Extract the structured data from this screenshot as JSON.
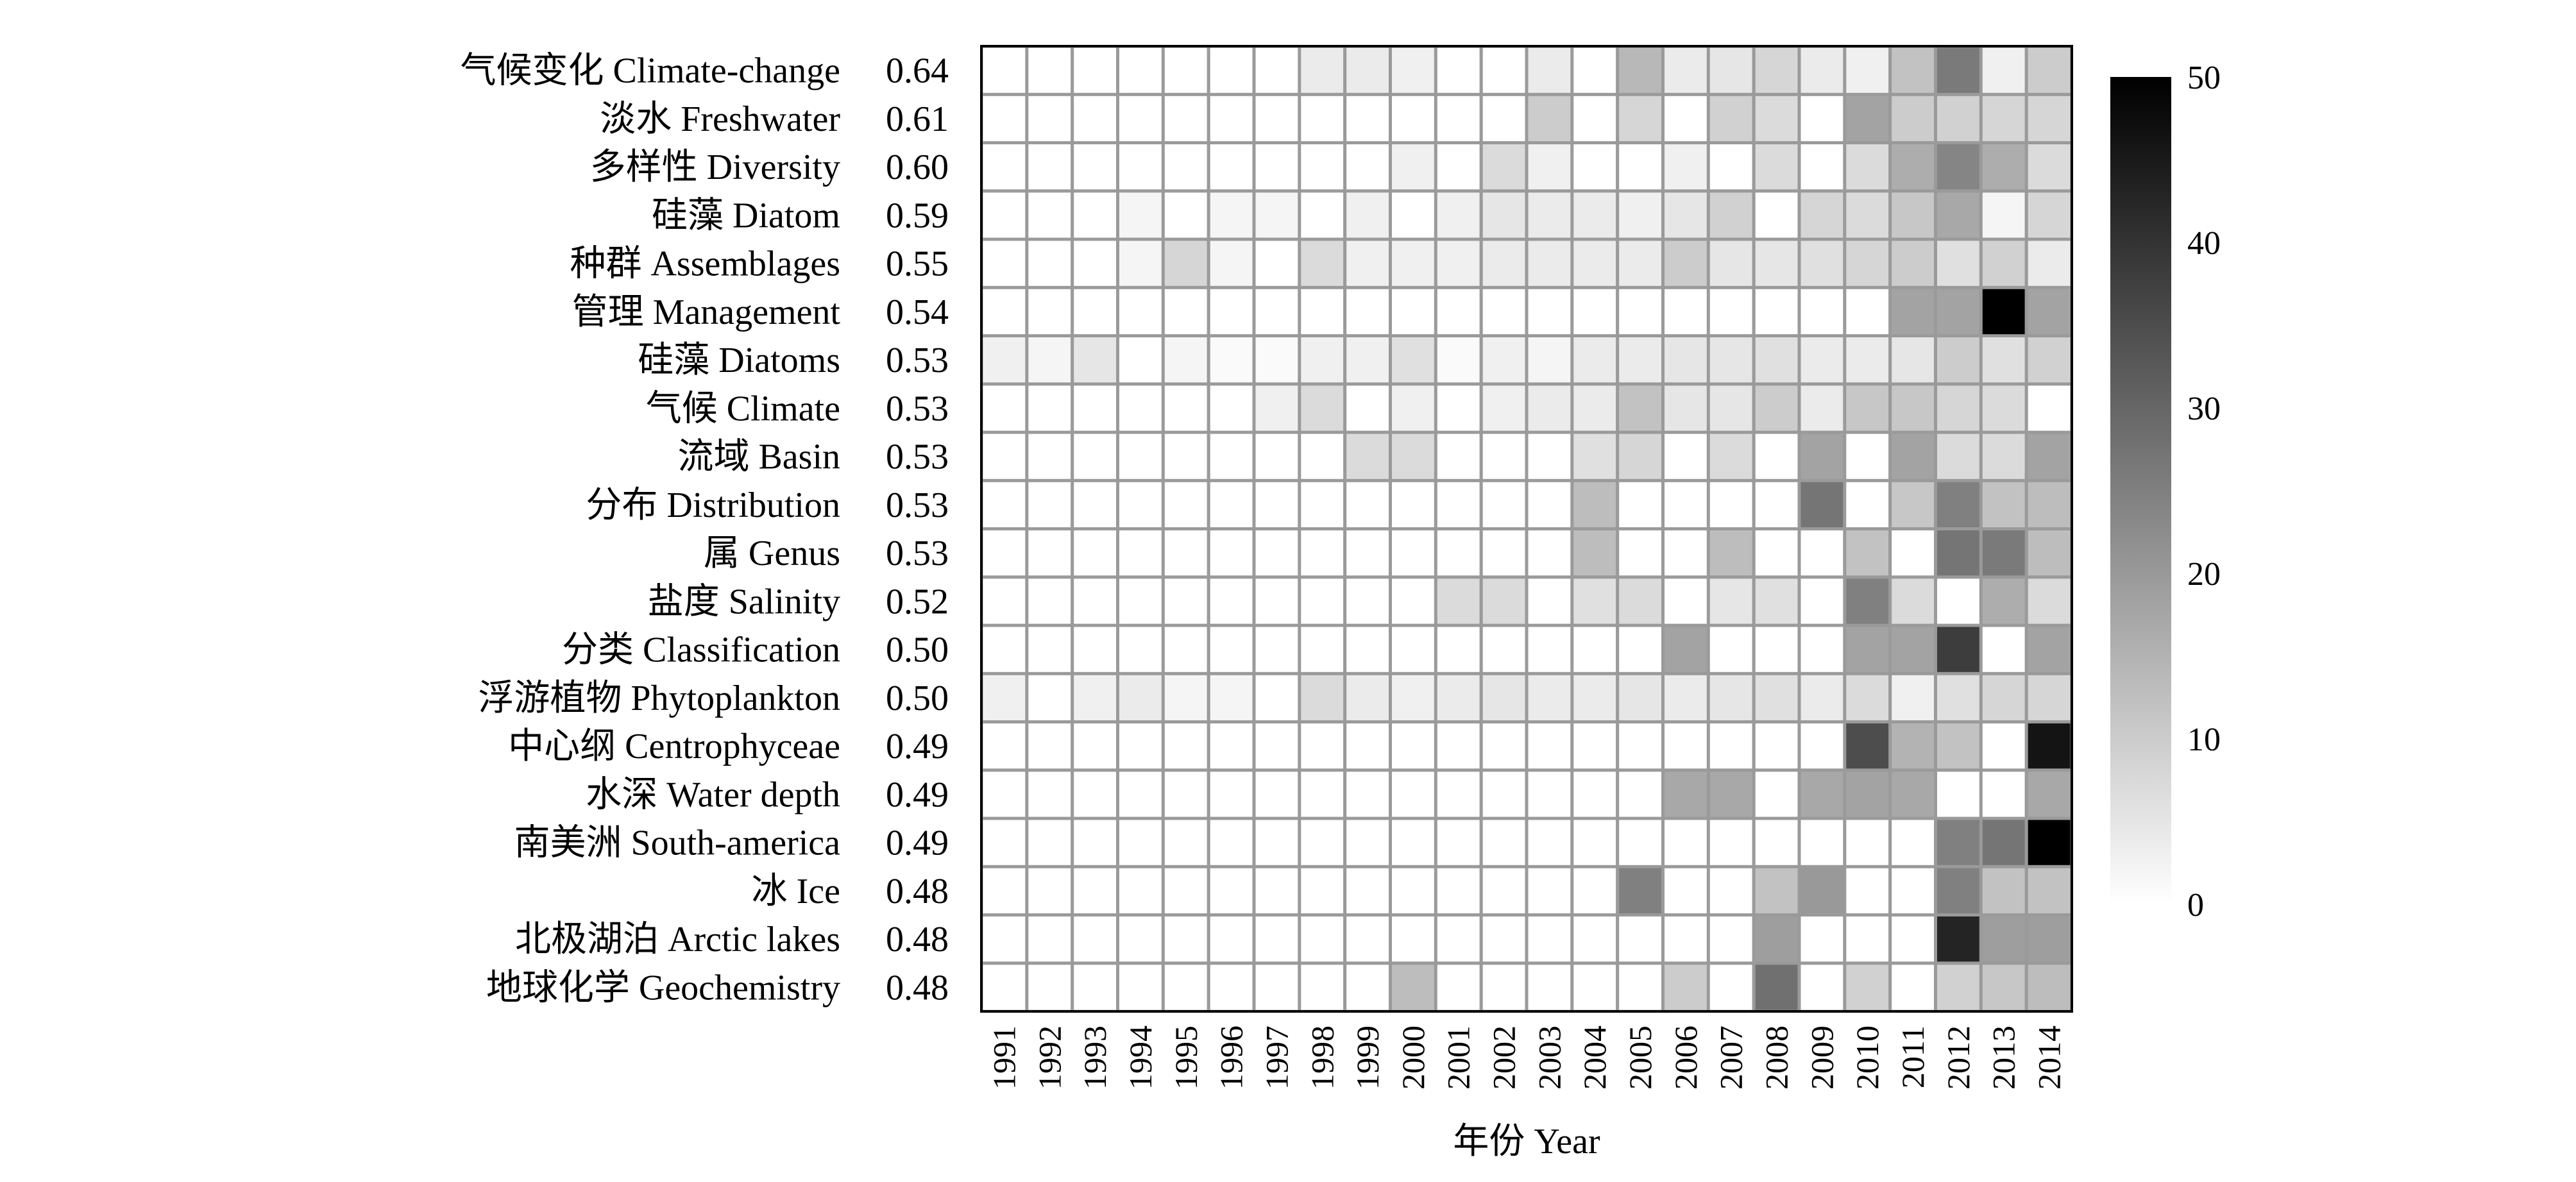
{
  "chart_data": {
    "type": "heatmap",
    "title": "",
    "xlabel": "年份 Year",
    "ylabel": "",
    "years": [
      "1991",
      "1992",
      "1993",
      "1994",
      "1995",
      "1996",
      "1997",
      "1998",
      "1999",
      "2000",
      "2001",
      "2002",
      "2003",
      "2004",
      "2005",
      "2006",
      "2007",
      "2008",
      "2009",
      "2010",
      "2011",
      "2012",
      "2013",
      "2014"
    ],
    "rows": [
      {
        "label": "气候变化 Climate-change",
        "score": "0.64",
        "values": [
          0,
          0,
          0,
          0,
          0,
          0,
          0,
          4,
          4,
          3,
          0,
          0,
          4,
          0,
          14,
          4,
          5,
          8,
          4,
          3,
          12,
          26,
          3,
          10
        ]
      },
      {
        "label": "淡水 Freshwater",
        "score": "0.61",
        "values": [
          0,
          0,
          0,
          0,
          0,
          0,
          0,
          0,
          0,
          0,
          0,
          0,
          10,
          0,
          8,
          0,
          9,
          7,
          0,
          18,
          10,
          9,
          8,
          8
        ]
      },
      {
        "label": "多样性 Diversity",
        "score": "0.60",
        "values": [
          0,
          0,
          0,
          0,
          0,
          0,
          0,
          0,
          0,
          3,
          0,
          7,
          3,
          0,
          0,
          3,
          0,
          7,
          0,
          7,
          16,
          24,
          16,
          7
        ]
      },
      {
        "label": "硅藻 Diatom",
        "score": "0.59",
        "values": [
          0,
          0,
          0,
          2,
          0,
          2,
          2,
          0,
          3,
          0,
          3,
          5,
          4,
          4,
          3,
          5,
          9,
          0,
          8,
          7,
          11,
          17,
          2,
          8
        ]
      },
      {
        "label": "种群 Assemblages",
        "score": "0.55",
        "values": [
          0,
          0,
          0,
          2,
          8,
          2,
          0,
          7,
          3,
          3,
          3,
          4,
          4,
          4,
          4,
          10,
          5,
          5,
          6,
          8,
          10,
          6,
          9,
          4
        ]
      },
      {
        "label": "管理 Management",
        "score": "0.54",
        "values": [
          0,
          0,
          0,
          0,
          0,
          0,
          0,
          0,
          0,
          0,
          0,
          0,
          0,
          0,
          0,
          0,
          0,
          0,
          0,
          0,
          18,
          18,
          50,
          18
        ]
      },
      {
        "label": "硅藻 Diatoms",
        "score": "0.53",
        "values": [
          3,
          2,
          5,
          0,
          2,
          1,
          1,
          3,
          3,
          6,
          1,
          3,
          2,
          4,
          4,
          5,
          5,
          6,
          4,
          4,
          5,
          10,
          6,
          9
        ]
      },
      {
        "label": "气候 Climate",
        "score": "0.53",
        "values": [
          0,
          0,
          0,
          0,
          0,
          0,
          3,
          7,
          0,
          3,
          0,
          3,
          4,
          4,
          12,
          5,
          5,
          10,
          4,
          11,
          11,
          8,
          7,
          0
        ]
      },
      {
        "label": "流域 Basin",
        "score": "0.53",
        "values": [
          0,
          0,
          0,
          0,
          0,
          0,
          0,
          0,
          7,
          7,
          0,
          0,
          0,
          6,
          8,
          0,
          7,
          0,
          18,
          0,
          18,
          7,
          7,
          18
        ]
      },
      {
        "label": "分布 Distribution",
        "score": "0.53",
        "values": [
          0,
          0,
          0,
          0,
          0,
          0,
          0,
          0,
          0,
          0,
          0,
          0,
          0,
          13,
          0,
          0,
          0,
          0,
          27,
          0,
          11,
          25,
          12,
          13
        ]
      },
      {
        "label": "属 Genus",
        "score": "0.53",
        "values": [
          0,
          0,
          0,
          0,
          0,
          0,
          0,
          0,
          0,
          0,
          0,
          0,
          0,
          13,
          0,
          0,
          13,
          0,
          0,
          12,
          0,
          27,
          26,
          13
        ]
      },
      {
        "label": "盐度 Salinity",
        "score": "0.52",
        "values": [
          0,
          0,
          0,
          0,
          0,
          0,
          0,
          0,
          0,
          0,
          7,
          7,
          0,
          6,
          7,
          0,
          5,
          6,
          0,
          25,
          7,
          0,
          16,
          7
        ]
      },
      {
        "label": "分类 Classification",
        "score": "0.50",
        "values": [
          0,
          0,
          0,
          0,
          0,
          0,
          0,
          0,
          0,
          0,
          0,
          0,
          0,
          0,
          0,
          18,
          0,
          0,
          0,
          18,
          18,
          38,
          0,
          18
        ]
      },
      {
        "label": "浮游植物 Phytoplankton",
        "score": "0.50",
        "values": [
          3,
          0,
          3,
          4,
          2,
          2,
          0,
          7,
          4,
          3,
          4,
          5,
          4,
          4,
          5,
          4,
          5,
          6,
          4,
          7,
          3,
          6,
          8,
          8
        ]
      },
      {
        "label": "中心纲 Centrophyceae",
        "score": "0.49",
        "values": [
          0,
          0,
          0,
          0,
          0,
          0,
          0,
          0,
          0,
          0,
          0,
          0,
          0,
          0,
          0,
          0,
          0,
          0,
          0,
          35,
          15,
          12,
          0,
          46
        ]
      },
      {
        "label": "水深 Water depth",
        "score": "0.49",
        "values": [
          0,
          0,
          0,
          0,
          0,
          0,
          0,
          0,
          0,
          0,
          0,
          0,
          0,
          0,
          0,
          17,
          17,
          0,
          17,
          18,
          17,
          0,
          0,
          17
        ]
      },
      {
        "label": "南美洲 South-america",
        "score": "0.49",
        "values": [
          0,
          0,
          0,
          0,
          0,
          0,
          0,
          0,
          0,
          0,
          0,
          0,
          0,
          0,
          0,
          0,
          0,
          0,
          0,
          0,
          0,
          25,
          27,
          50
        ]
      },
      {
        "label": "冰 Ice",
        "score": "0.48",
        "values": [
          0,
          0,
          0,
          0,
          0,
          0,
          0,
          0,
          0,
          0,
          0,
          0,
          0,
          0,
          25,
          0,
          0,
          12,
          20,
          0,
          0,
          25,
          12,
          12
        ]
      },
      {
        "label": "北极湖泊 Arctic lakes",
        "score": "0.48",
        "values": [
          0,
          0,
          0,
          0,
          0,
          0,
          0,
          0,
          0,
          0,
          0,
          0,
          0,
          0,
          0,
          0,
          0,
          19,
          0,
          0,
          0,
          43,
          19,
          19
        ]
      },
      {
        "label": "地球化学 Geochemistry",
        "score": "0.48",
        "values": [
          0,
          0,
          0,
          0,
          0,
          0,
          0,
          0,
          0,
          13,
          0,
          0,
          0,
          0,
          0,
          10,
          0,
          28,
          0,
          9,
          0,
          9,
          11,
          13
        ]
      }
    ],
    "colorbar": {
      "min": 0,
      "max": 50,
      "ticks": [
        "0",
        "10",
        "20",
        "30",
        "40",
        "50"
      ],
      "low_color": "#ffffff",
      "high_color": "#000000"
    },
    "grid": true
  }
}
